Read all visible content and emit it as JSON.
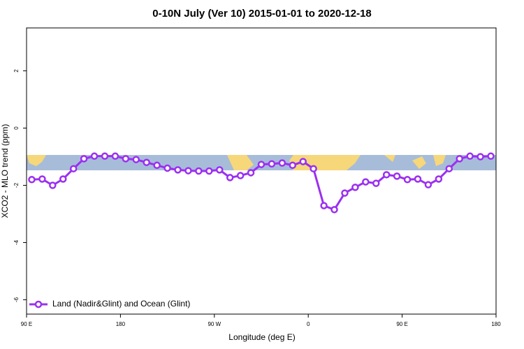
{
  "chart_data": {
    "type": "line",
    "title": "0-10N July (Ver 10)   2015-01-01 to 2020-12-18",
    "x_label": "Longitude (deg E)",
    "y_label": "XCO2 - MLO trend (ppm)",
    "x": [
      95,
      105,
      115,
      125,
      135,
      145,
      155,
      165,
      175,
      185,
      195,
      205,
      215,
      225,
      235,
      245,
      255,
      265,
      275,
      285,
      295,
      305,
      315,
      325,
      335,
      345,
      355,
      365,
      375,
      385,
      395,
      405,
      415,
      425,
      435,
      445,
      455,
      465,
      475,
      485,
      495,
      505,
      515,
      525,
      535
    ],
    "series": [
      {
        "name": "Land (Nadir&Glint) and Ocean (Glint)",
        "color": "#9b30f0",
        "values": [
          -1.8,
          -1.78,
          -2.0,
          -1.78,
          -1.42,
          -1.07,
          -0.98,
          -0.98,
          -0.98,
          -1.07,
          -1.1,
          -1.2,
          -1.3,
          -1.4,
          -1.46,
          -1.49,
          -1.5,
          -1.5,
          -1.46,
          -1.73,
          -1.66,
          -1.56,
          -1.27,
          -1.25,
          -1.22,
          -1.3,
          -1.17,
          -1.42,
          -2.71,
          -2.85,
          -2.27,
          -2.07,
          -1.88,
          -1.93,
          -1.63,
          -1.68,
          -1.8,
          -1.78,
          -1.98,
          -1.78,
          -1.42,
          -1.07,
          -0.98,
          -1.0,
          -0.98
        ]
      }
    ],
    "xlim": [
      90,
      540
    ],
    "xticks": [
      {
        "value": 90,
        "label": "90 E"
      },
      {
        "value": 180,
        "label": "180"
      },
      {
        "value": 270,
        "label": "90 W"
      },
      {
        "value": 360,
        "label": "0"
      },
      {
        "value": 450,
        "label": "90 E"
      },
      {
        "value": 540,
        "label": "180"
      }
    ],
    "ylim": [
      -6.5,
      3.5
    ],
    "yticks": [
      -6,
      -4,
      -2,
      0,
      2
    ],
    "legend": "bottom-left"
  }
}
